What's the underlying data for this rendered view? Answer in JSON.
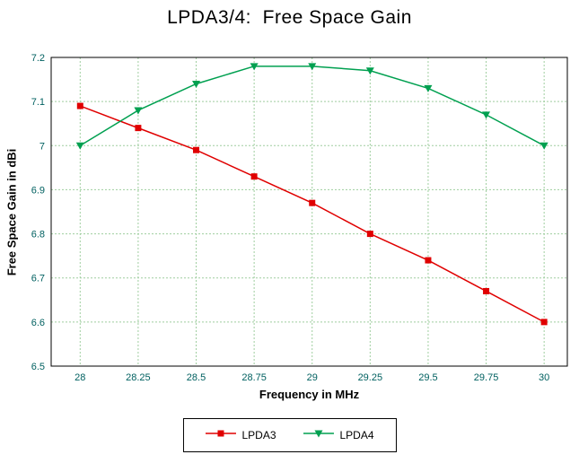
{
  "title": "LPDA3/4:  Free Space Gain",
  "chart_data": {
    "type": "line",
    "title": "LPDA3/4:  Free Space Gain",
    "xlabel": "Frequency in MHz",
    "ylabel": "Free Space Gain in dBi",
    "x": [
      28,
      28.25,
      28.5,
      28.75,
      29,
      29.25,
      29.5,
      29.75,
      30
    ],
    "series": [
      {
        "name": "LPDA3",
        "color": "#e00000",
        "marker": "square",
        "values": [
          7.09,
          7.04,
          6.99,
          6.93,
          6.87,
          6.8,
          6.74,
          6.67,
          6.6
        ]
      },
      {
        "name": "LPDA4",
        "color": "#00a050",
        "marker": "triangle-down",
        "values": [
          7.0,
          7.08,
          7.14,
          7.18,
          7.18,
          7.17,
          7.13,
          7.07,
          7.0
        ]
      }
    ],
    "xlim": [
      27.875,
      30.1
    ],
    "ylim": [
      6.5,
      7.2
    ],
    "x_ticks": [
      "28",
      "28.25",
      "28.5",
      "28.75",
      "29",
      "29.25",
      "29.5",
      "29.75",
      "30"
    ],
    "y_ticks": [
      "6.5",
      "6.6",
      "6.7",
      "6.8",
      "6.9",
      "7",
      "7.1",
      "7.2"
    ],
    "grid": true,
    "grid_color": "#9fce9f",
    "axis_color": "#000000",
    "legend_position": "bottom"
  }
}
